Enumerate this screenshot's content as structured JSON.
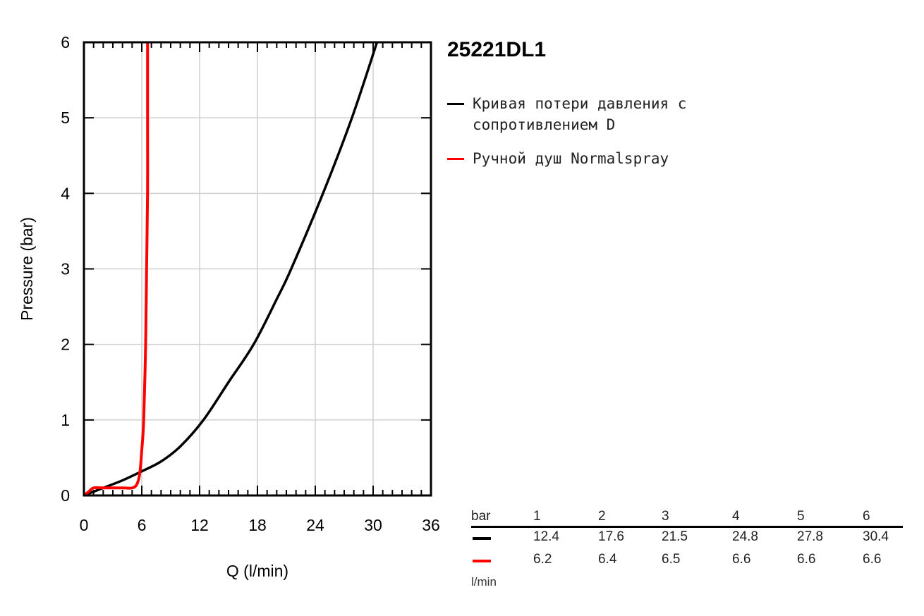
{
  "title": "25221DL1",
  "colors": {
    "series1": "#000000",
    "series2": "#ff0000",
    "grid": "#d0d0d0"
  },
  "legend": [
    {
      "label": "Кривая потери давления с сопротивлением D",
      "color": "#000000"
    },
    {
      "label": "Ручной душ Normalspray",
      "color": "#ff0000"
    }
  ],
  "table": {
    "header_label": "bar",
    "pressures": [
      "1",
      "2",
      "3",
      "4",
      "5",
      "6"
    ],
    "rows": [
      {
        "color": "#000000",
        "values": [
          "12.4",
          "17.6",
          "21.5",
          "24.8",
          "27.8",
          "30.4"
        ]
      },
      {
        "color": "#ff0000",
        "values": [
          "6.2",
          "6.4",
          "6.5",
          "6.6",
          "6.6",
          "6.6"
        ]
      }
    ],
    "unit": "l/min"
  },
  "chart_data": {
    "type": "line",
    "title": "25221DL1",
    "xlabel": "Q (l/min)",
    "ylabel": "Pressure (bar)",
    "xlim": [
      0,
      36
    ],
    "ylim": [
      0,
      6
    ],
    "xticks": [
      "0",
      "6",
      "12",
      "18",
      "24",
      "30",
      "36"
    ],
    "yticks": [
      "0",
      "1",
      "2",
      "3",
      "4",
      "5",
      "6"
    ],
    "grid": true,
    "legend_position": "right",
    "series": [
      {
        "name": "Кривая потери давления с сопротивлением D",
        "color": "#000000",
        "x": [
          0,
          2,
          4,
          6,
          8,
          10,
          12.4,
          15,
          17.6,
          20,
          21.5,
          24.8,
          27.8,
          30.4
        ],
        "y": [
          0,
          0.1,
          0.2,
          0.32,
          0.45,
          0.65,
          1,
          1.5,
          2,
          2.6,
          3,
          4,
          5,
          6
        ]
      },
      {
        "name": "Ручной душ Normalspray",
        "color": "#ff0000",
        "x": [
          0,
          0.5,
          1,
          2,
          4,
          5,
          5.5,
          5.8,
          6.0,
          6.2,
          6.4,
          6.5,
          6.6,
          6.6,
          6.6
        ],
        "y": [
          0,
          0.05,
          0.1,
          0.1,
          0.1,
          0.1,
          0.15,
          0.3,
          0.6,
          1,
          2,
          3,
          4,
          5,
          6
        ]
      }
    ]
  }
}
